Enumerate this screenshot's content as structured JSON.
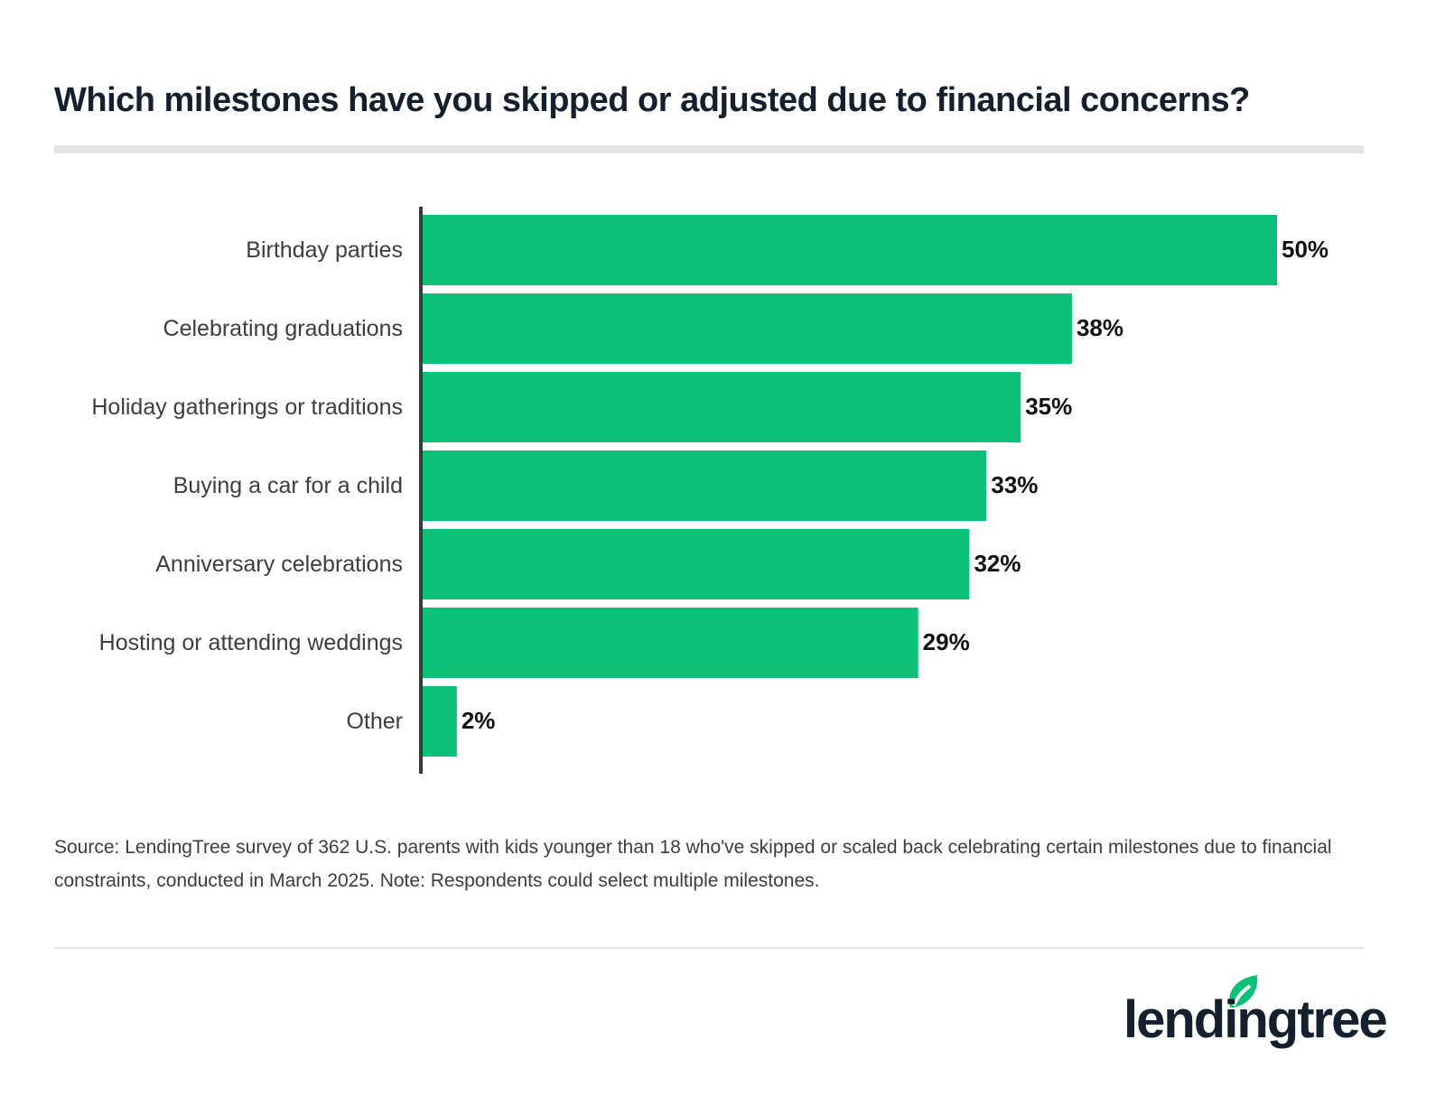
{
  "chart_data": {
    "type": "bar",
    "orientation": "horizontal",
    "title": "Which milestones have you skipped or adjusted due to financial concerns?",
    "categories": [
      "Birthday parties",
      "Celebrating graduations",
      "Holiday gatherings or traditions",
      "Buying a car for a child",
      "Anniversary celebrations",
      "Hosting or attending weddings",
      "Other"
    ],
    "values": [
      50,
      38,
      35,
      33,
      32,
      29,
      2
    ],
    "value_labels": [
      "50%",
      "38%",
      "35%",
      "33%",
      "32%",
      "29%",
      "2%"
    ],
    "xlim": [
      0,
      50
    ],
    "grid": false,
    "bar_color": "#0bc177",
    "axis_color": "#3a3a3a"
  },
  "source": "Source: LendingTree survey of 362 U.S. parents with kids younger than 18 who've skipped or scaled back celebrating certain milestones due to financial constraints, conducted in March 2025. Note: Respondents could select multiple milestones.",
  "brand": {
    "logo_text": "lendingtree",
    "color": "#14202e",
    "leaf_color": "#0bc177"
  }
}
